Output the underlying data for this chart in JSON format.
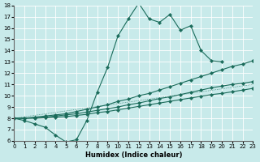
{
  "xlabel": "Humidex (Indice chaleur)",
  "xlim": [
    0,
    23
  ],
  "ylim": [
    6,
    18
  ],
  "xticks": [
    0,
    1,
    2,
    3,
    4,
    5,
    6,
    7,
    8,
    9,
    10,
    11,
    12,
    13,
    14,
    15,
    16,
    17,
    18,
    19,
    20,
    21,
    22,
    23
  ],
  "yticks": [
    6,
    7,
    8,
    9,
    10,
    11,
    12,
    13,
    14,
    15,
    16,
    17,
    18
  ],
  "bg_color": "#c8eaea",
  "line_color": "#1a6b5a",
  "grid_color": "#ffffff",
  "curve_main": {
    "x": [
      0,
      1,
      2,
      3,
      4,
      5,
      6,
      7,
      8,
      9,
      10,
      11,
      12,
      13,
      14,
      15,
      16,
      17,
      18,
      19,
      20,
      21,
      22,
      23
    ],
    "y": [
      8.0,
      7.8,
      7.5,
      7.2,
      6.5,
      5.9,
      6.1,
      7.8,
      10.3,
      12.5,
      15.3,
      16.8,
      18.2,
      16.8,
      16.5,
      17.2,
      15.8,
      16.2,
      14.0,
      13.1,
      13.0,
      null,
      null,
      null
    ]
  },
  "curve_descend": {
    "x": [
      18,
      19,
      20,
      21,
      22,
      23
    ],
    "y": [
      14.0,
      13.1,
      13.0,
      11.2,
      11.4,
      11.0
    ]
  },
  "line_high": {
    "x": [
      0,
      1,
      2,
      3,
      4,
      5,
      6,
      7,
      8,
      9,
      10,
      11,
      12,
      13,
      14,
      15,
      16,
      17,
      18,
      19,
      20,
      21,
      22,
      23
    ],
    "y": [
      8.0,
      8.0,
      8.1,
      8.2,
      8.3,
      8.4,
      8.6,
      8.8,
      9.0,
      9.2,
      9.5,
      9.7,
      10.0,
      10.2,
      10.5,
      10.8,
      11.1,
      11.4,
      11.7,
      12.0,
      12.3,
      12.6,
      12.8,
      13.1
    ]
  },
  "line_mid": {
    "x": [
      0,
      1,
      2,
      3,
      4,
      5,
      6,
      7,
      8,
      9,
      10,
      11,
      12,
      13,
      14,
      15,
      16,
      17,
      18,
      19,
      20,
      21,
      22,
      23
    ],
    "y": [
      8.0,
      8.0,
      8.05,
      8.1,
      8.2,
      8.3,
      8.4,
      8.55,
      8.7,
      8.85,
      9.0,
      9.2,
      9.35,
      9.55,
      9.75,
      9.9,
      10.1,
      10.3,
      10.5,
      10.7,
      10.85,
      11.0,
      11.1,
      11.25
    ]
  },
  "line_low": {
    "x": [
      0,
      1,
      2,
      3,
      4,
      5,
      6,
      7,
      8,
      9,
      10,
      11,
      12,
      13,
      14,
      15,
      16,
      17,
      18,
      19,
      20,
      21,
      22,
      23
    ],
    "y": [
      8.0,
      8.0,
      8.0,
      8.05,
      8.1,
      8.15,
      8.25,
      8.35,
      8.5,
      8.6,
      8.75,
      8.9,
      9.05,
      9.2,
      9.35,
      9.5,
      9.65,
      9.8,
      9.95,
      10.1,
      10.2,
      10.35,
      10.5,
      10.65
    ]
  }
}
